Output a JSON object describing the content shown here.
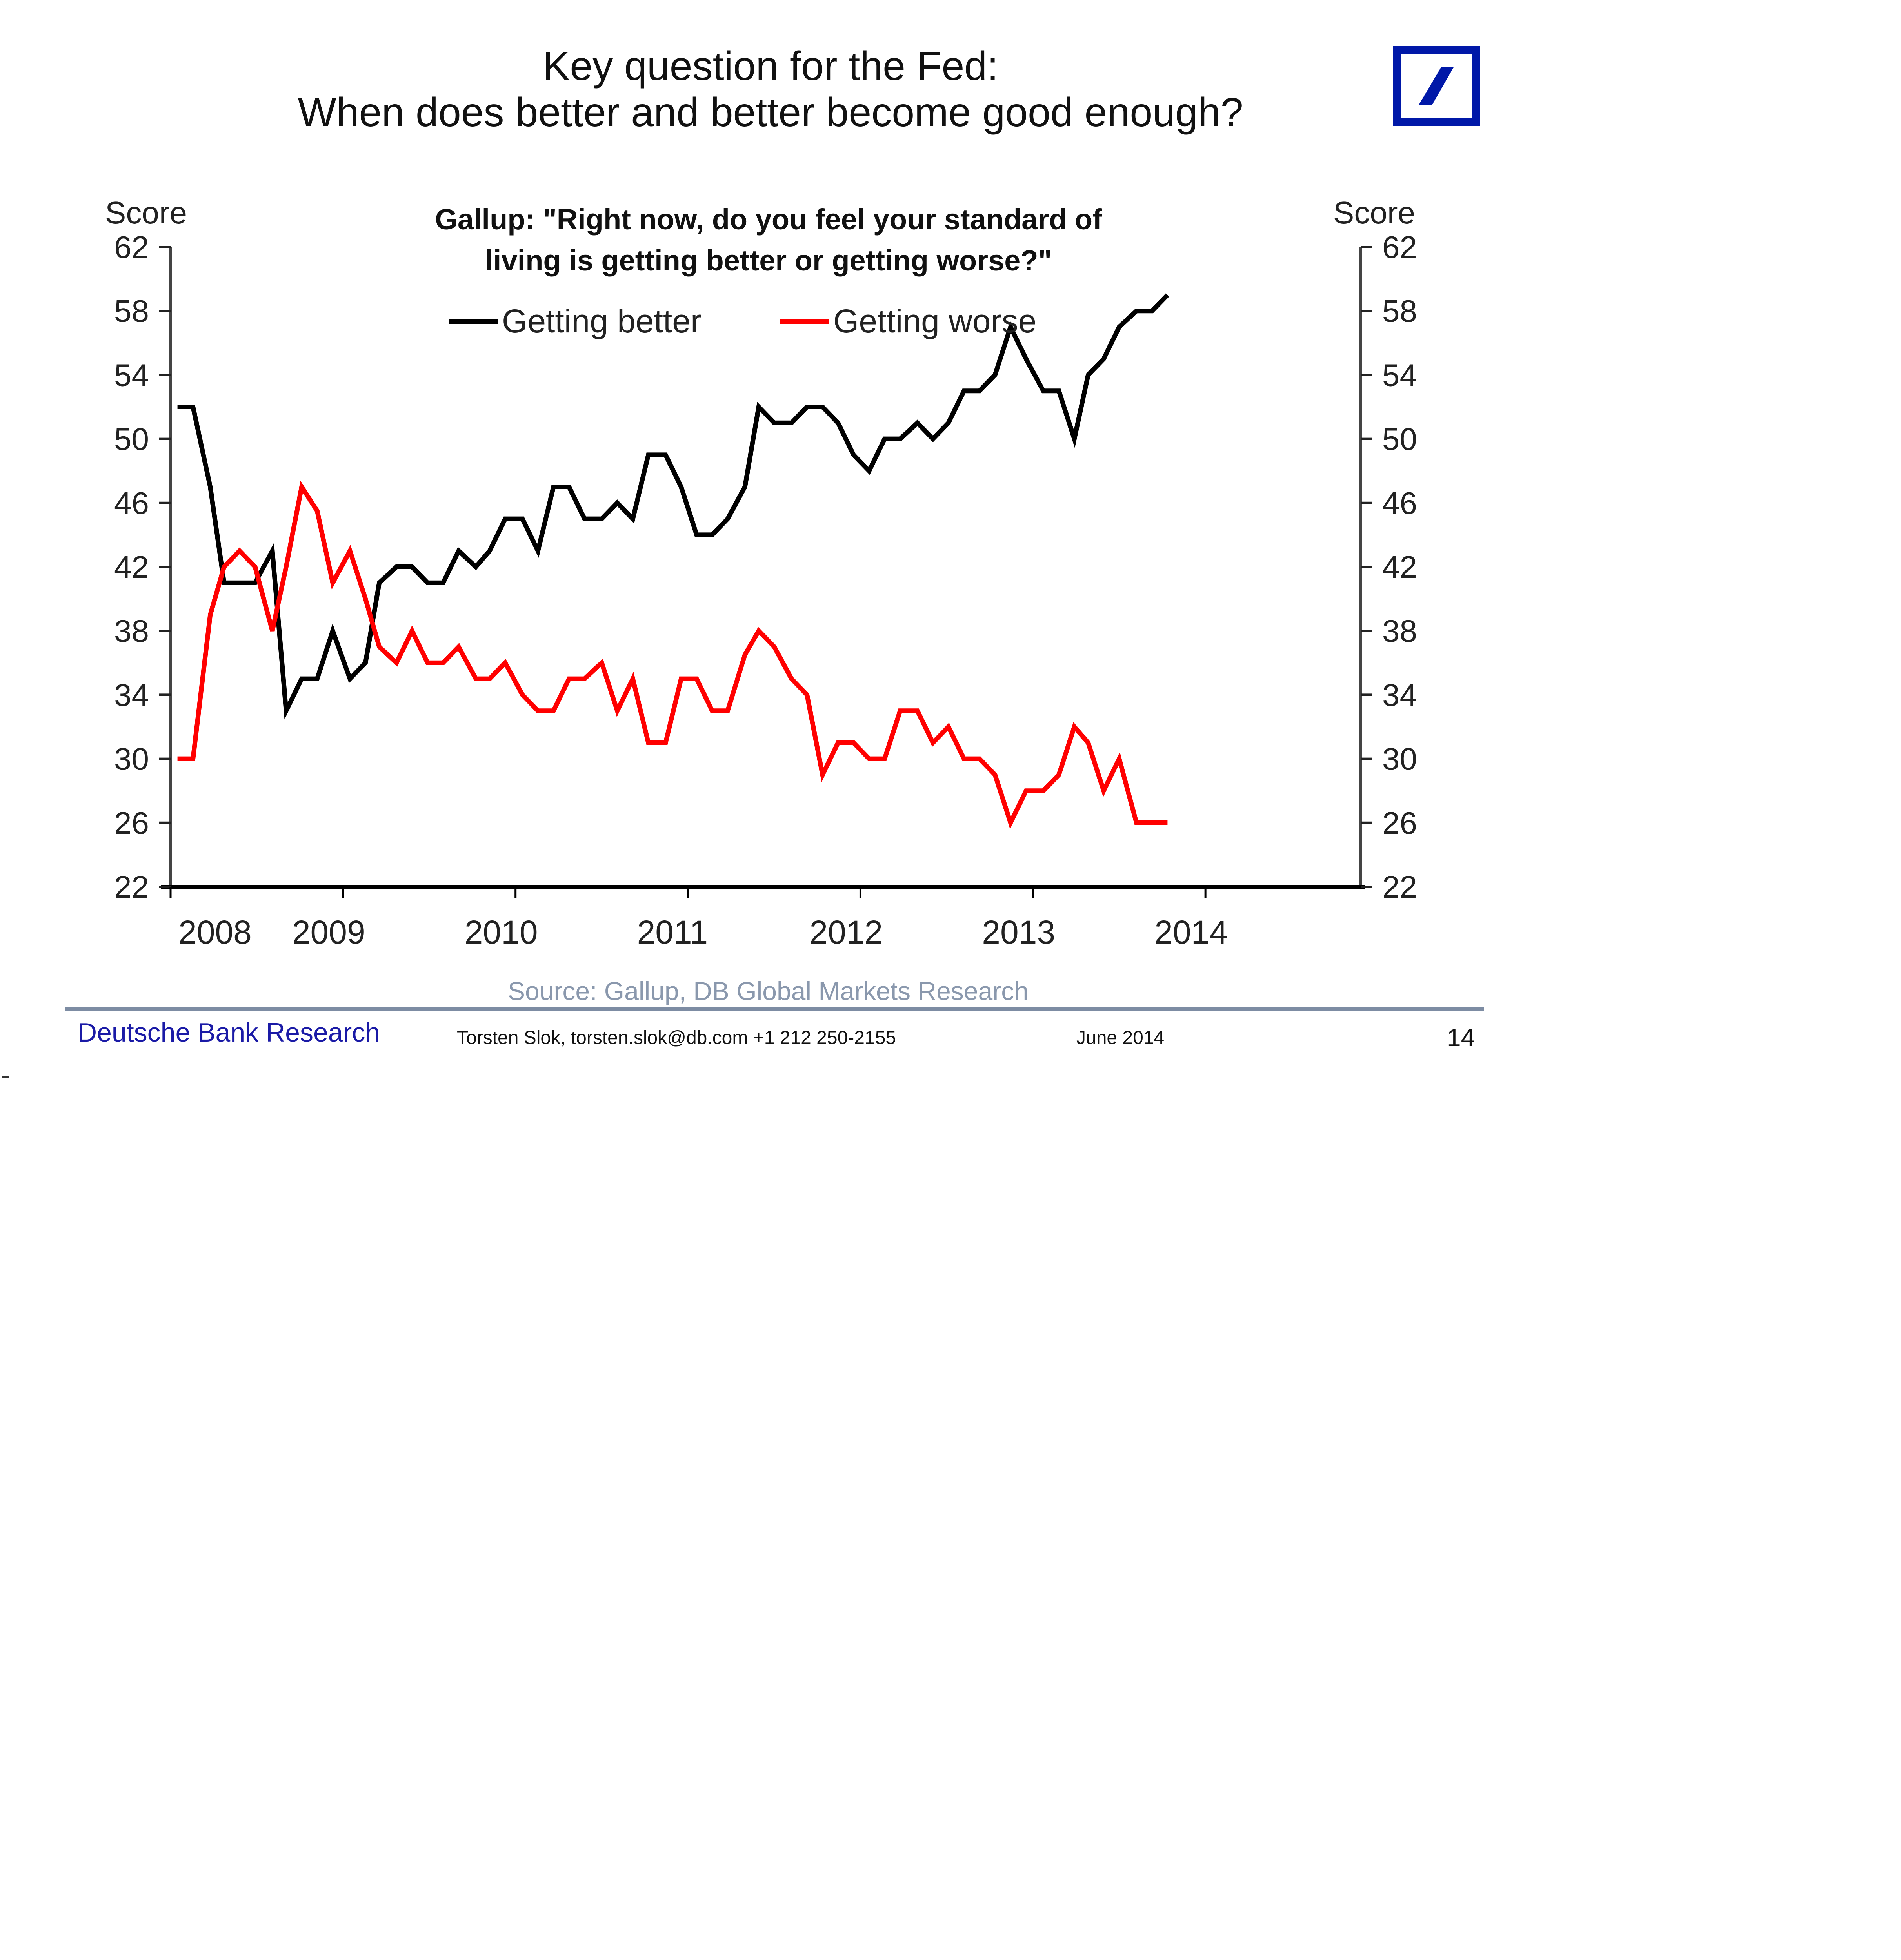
{
  "slide": {
    "title_line1": "Key question for the Fed:",
    "title_line2": "When does better and better become good enough?",
    "logo": "deutsche-bank-logo",
    "brand_color": "#0018a8"
  },
  "footer": {
    "source": "Source: Gallup, DB Global Markets Research",
    "brand": "Deutsche Bank Research",
    "contact": "Torsten Slok, torsten.slok@db.com  +1 212 250-2155",
    "date": "June 2014",
    "page": "14"
  },
  "chart_data": {
    "type": "line",
    "title": "Gallup: \"Right now, do you feel your standard of living is getting better or getting worse?\"",
    "title_line1": "Gallup: \"Right now, do you feel your standard of",
    "title_line2": "living is getting better or getting worse?\"",
    "xlabel": "",
    "ylabel_left": "Score",
    "ylabel_right": "Score",
    "xlim": [
      2008,
      2014.9
    ],
    "ylim": [
      22,
      62
    ],
    "yticks": [
      22,
      26,
      30,
      34,
      38,
      42,
      46,
      50,
      54,
      58,
      62
    ],
    "xtick_labels": [
      "2008",
      "2009",
      "2010",
      "2011",
      "2012",
      "2013",
      "2014"
    ],
    "grid": false,
    "legend_position": "top-center",
    "x": [
      2008.04,
      2008.13,
      2008.23,
      2008.31,
      2008.4,
      2008.49,
      2008.59,
      2008.67,
      2008.76,
      2008.85,
      2008.94,
      2009.04,
      2009.13,
      2009.21,
      2009.31,
      2009.4,
      2009.49,
      2009.58,
      2009.67,
      2009.77,
      2009.85,
      2009.94,
      2010.04,
      2010.13,
      2010.22,
      2010.31,
      2010.4,
      2010.5,
      2010.59,
      2010.68,
      2010.77,
      2010.87,
      2010.96,
      2011.05,
      2011.14,
      2011.23,
      2011.33,
      2011.41,
      2011.5,
      2011.6,
      2011.69,
      2011.78,
      2011.87,
      2011.96,
      2012.05,
      2012.14,
      2012.23,
      2012.33,
      2012.42,
      2012.51,
      2012.6,
      2012.69,
      2012.78,
      2012.87,
      2012.96,
      2013.06,
      2013.15,
      2013.24,
      2013.32,
      2013.41,
      2013.5,
      2013.6,
      2013.69,
      2013.78
    ],
    "series": [
      {
        "name": "Getting better",
        "color": "#000000",
        "values": [
          52,
          52,
          47,
          41,
          41,
          41,
          43,
          33,
          35,
          35,
          38,
          35,
          36,
          41,
          42,
          42,
          41,
          41,
          43,
          42,
          43,
          45,
          45,
          43,
          47,
          47,
          45,
          45,
          46,
          45,
          49,
          49,
          47,
          44,
          44,
          45,
          47,
          52,
          51,
          51,
          52,
          52,
          51,
          49,
          48,
          50,
          50,
          51,
          50,
          51,
          53,
          53,
          54,
          57,
          55,
          53,
          53,
          50,
          54,
          55,
          57,
          58,
          58,
          59
        ]
      },
      {
        "name": "Getting worse",
        "color": "#ff0000",
        "values": [
          30,
          30,
          39,
          42,
          43,
          42,
          38,
          42,
          47,
          45.5,
          41,
          43,
          40,
          37,
          36,
          38,
          36,
          36,
          37,
          35,
          35,
          36,
          34,
          33,
          33,
          35,
          35,
          36,
          33,
          35,
          31,
          31,
          35,
          35,
          33,
          33,
          36.5,
          38,
          37,
          35,
          34,
          29,
          31,
          31,
          30,
          30,
          33,
          33,
          31,
          32,
          30,
          30,
          29,
          26,
          28,
          28,
          29,
          32,
          31,
          28,
          30,
          26,
          26,
          26
        ]
      }
    ]
  }
}
